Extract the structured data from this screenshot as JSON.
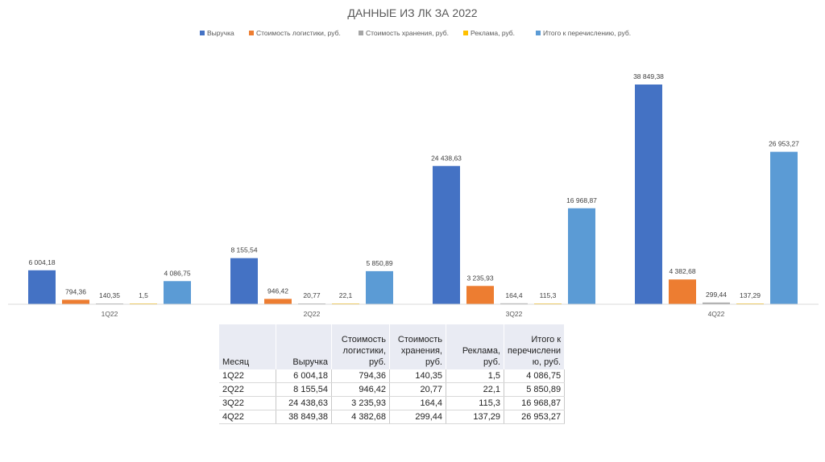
{
  "chart_data": {
    "type": "bar",
    "title": "ДАННЫЕ ИЗ ЛК ЗА 2022",
    "categories": [
      "1Q22",
      "2Q22",
      "3Q22",
      "4Q22"
    ],
    "ylim": [
      0,
      40000
    ],
    "legend_position": "top",
    "series": [
      {
        "name": "Выручка",
        "color": "#4472c4",
        "values": [
          6004.18,
          8155.54,
          24438.63,
          38849.38
        ],
        "labels": [
          "6 004,18",
          "8 155,54",
          "24 438,63",
          "38 849,38"
        ]
      },
      {
        "name": "Стоимость логистики, руб.",
        "color": "#ed7d31",
        "values": [
          794.36,
          946.42,
          3235.93,
          4382.68
        ],
        "labels": [
          "794,36",
          "946,42",
          "3 235,93",
          "4 382,68"
        ]
      },
      {
        "name": "Стоимость хранения, руб.",
        "color": "#a5a5a5",
        "values": [
          140.35,
          20.77,
          164.4,
          299.44
        ],
        "labels": [
          "140,35",
          "20,77",
          "164,4",
          "299,44"
        ]
      },
      {
        "name": "Реклама, руб.",
        "color": "#ffc000",
        "values": [
          1.5,
          22.1,
          115.3,
          137.29
        ],
        "labels": [
          "1,5",
          "22,1",
          "115,3",
          "137,29"
        ]
      },
      {
        "name": "Итого к перечислению, руб.",
        "color": "#5b9bd5",
        "values": [
          4086.75,
          5850.89,
          16968.87,
          26953.27
        ],
        "labels": [
          "4 086,75",
          "5 850,89",
          "16 968,87",
          "26 953,27"
        ]
      }
    ]
  },
  "table": {
    "headers": [
      "Месяц",
      "Выручка",
      "Стоимость логистики, руб.",
      "Стоимость хранения, руб.",
      "Реклама, руб.",
      "Итого к перечислению, руб."
    ],
    "header_lines": [
      [
        "Месяц"
      ],
      [
        "Выручка"
      ],
      [
        "Стоимость",
        "логистики,",
        "руб."
      ],
      [
        "Стоимость",
        "хранения,",
        "руб."
      ],
      [
        "Реклама,",
        "руб."
      ],
      [
        "Итого к",
        "перечислени",
        "ю, руб."
      ]
    ],
    "rows": [
      [
        "1Q22",
        "6 004,18",
        "794,36",
        "140,35",
        "1,5",
        "4 086,75"
      ],
      [
        "2Q22",
        "8 155,54",
        "946,42",
        "20,77",
        "22,1",
        "5 850,89"
      ],
      [
        "3Q22",
        "24 438,63",
        "3 235,93",
        "164,4",
        "115,3",
        "16 968,87"
      ],
      [
        "4Q22",
        "38 849,38",
        "4 382,68",
        "299,44",
        "137,29",
        "26 953,27"
      ]
    ]
  }
}
